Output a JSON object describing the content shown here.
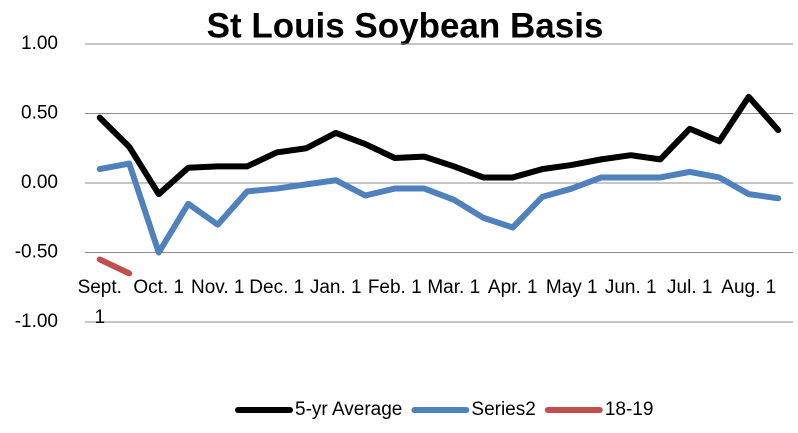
{
  "chart_data": {
    "type": "line",
    "title": "St Louis Soybean Basis",
    "categories": [
      "Sept. 1",
      null,
      "Oct. 1",
      null,
      "Nov. 1",
      null,
      "Dec. 1",
      null,
      "Jan. 1",
      null,
      "Feb. 1",
      null,
      "Mar. 1",
      null,
      "Apr. 1",
      null,
      "May 1",
      null,
      "Jun. 1",
      null,
      "Jul. 1",
      null,
      "Aug. 1",
      null
    ],
    "series": [
      {
        "name": "5-yr Average",
        "color": "#000000",
        "values": [
          0.47,
          0.26,
          -0.08,
          0.11,
          0.12,
          0.12,
          0.22,
          0.25,
          0.36,
          0.28,
          0.18,
          0.19,
          0.12,
          0.04,
          0.04,
          0.1,
          0.13,
          0.17,
          0.2,
          0.17,
          0.39,
          0.3,
          0.62,
          0.38
        ]
      },
      {
        "name": "Series2",
        "color": "#4f81bd",
        "values": [
          0.1,
          0.14,
          -0.5,
          -0.15,
          -0.3,
          -0.06,
          -0.04,
          -0.01,
          0.02,
          -0.09,
          -0.04,
          -0.04,
          -0.12,
          -0.25,
          -0.32,
          -0.1,
          -0.04,
          0.04,
          0.04,
          0.04,
          0.08,
          0.04,
          -0.08,
          -0.11
        ]
      },
      {
        "name": "18-19",
        "color": "#c0504d",
        "values": [
          -0.55,
          -0.65,
          null,
          null,
          null,
          null,
          null,
          null,
          null,
          null,
          null,
          null,
          null,
          null,
          null,
          null,
          null,
          null,
          null,
          null,
          null,
          null,
          null,
          null
        ]
      }
    ],
    "ylim": [
      -1,
      1
    ],
    "yticks": [
      {
        "value": -1,
        "label": "-1.00"
      },
      {
        "value": -0.5,
        "label": "-0.50"
      },
      {
        "value": 0,
        "label": "0.00"
      },
      {
        "value": 0.5,
        "label": "0.50"
      },
      {
        "value": 1,
        "label": "1.00"
      }
    ],
    "grid": true,
    "legend": "bottom"
  }
}
